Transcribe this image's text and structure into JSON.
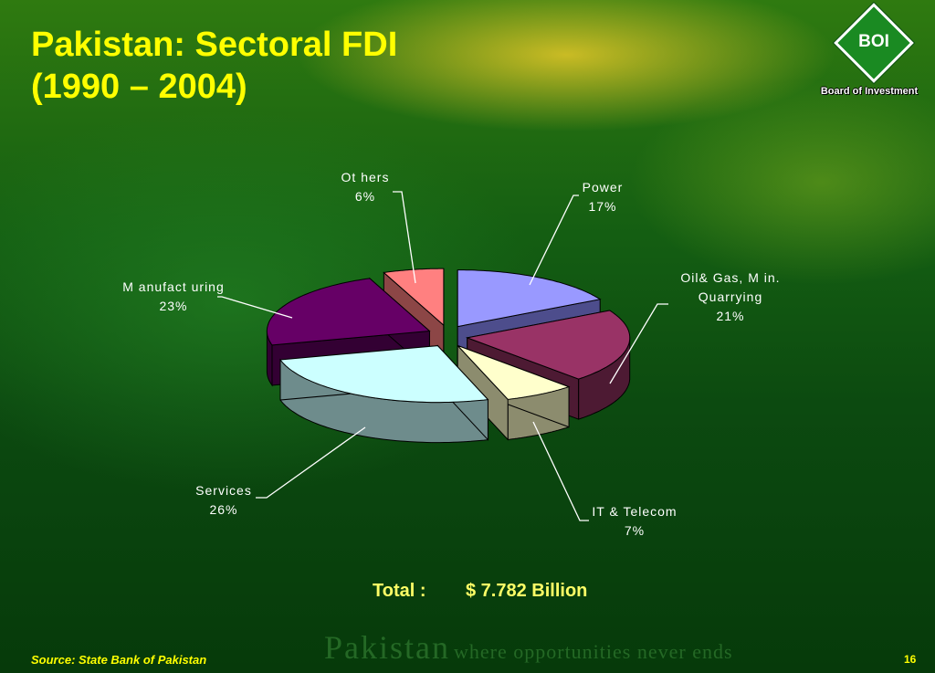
{
  "slide": {
    "title_line1": "Pakistan: Sectoral FDI",
    "title_line2": "(1990 – 2004)",
    "logo_text": "BOI",
    "logo_caption": "Board of Investment",
    "total_label": "Total :",
    "total_value": "$ 7.782 Billion",
    "watermark_main": "Pakistan",
    "watermark_tagline": "where opportunities never ends",
    "source": "Source: State Bank of Pakistan",
    "page_number": "16"
  },
  "chart_data": {
    "type": "pie",
    "slices": [
      {
        "label_line1": "Power",
        "label_line2": "",
        "pct_label": "17%",
        "value": 17,
        "top_color": "#9999ff",
        "side_color": "#4d4d8c"
      },
      {
        "label_line1": "Oil& Gas, M in.",
        "label_line2": "Quarrying",
        "pct_label": "21%",
        "value": 21,
        "top_color": "#993366",
        "side_color": "#4d1a33"
      },
      {
        "label_line1": "IT & Telecom",
        "label_line2": "",
        "pct_label": "7%",
        "value": 7,
        "top_color": "#ffffcc",
        "side_color": "#8c8c6e"
      },
      {
        "label_line1": "Services",
        "label_line2": "",
        "pct_label": "26%",
        "value": 26,
        "top_color": "#ccffff",
        "side_color": "#6e8c8c"
      },
      {
        "label_line1": "M anufact uring",
        "label_line2": "",
        "pct_label": "23%",
        "value": 23,
        "top_color": "#660066",
        "side_color": "#330033"
      },
      {
        "label_line1": "Ot hers",
        "label_line2": "",
        "pct_label": "6%",
        "value": 6,
        "top_color": "#ff8080",
        "side_color": "#8c4646"
      }
    ]
  }
}
